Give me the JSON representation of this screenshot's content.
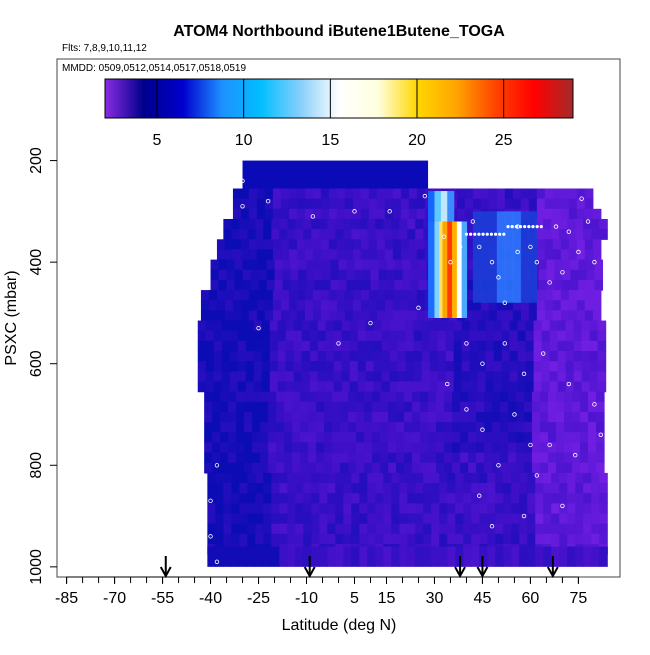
{
  "chart_data": {
    "type": "heatmap",
    "title": "ATOM4 Northbound iButene1Butene_TOGA",
    "subtitle_flights": "Flts: 7,8,9,10,11,12",
    "subtitle_dates": "MMDD: 0509,0512,0514,0517,0518,0519",
    "xlabel": "Latitude (deg N)",
    "ylabel": "PSXC (mbar)",
    "xlim": [
      -88,
      88
    ],
    "ylim": [
      1020,
      0
    ],
    "x_ticks": [
      -85,
      -70,
      -55,
      -40,
      -25,
      -10,
      5,
      15,
      30,
      45,
      60,
      75
    ],
    "x_tick_labels": [
      "-85",
      "-70",
      "-55",
      "-40",
      "-25",
      "-10",
      "5",
      "15",
      "30",
      "45",
      "60",
      "75"
    ],
    "x_minor_step": 5,
    "y_ticks": [
      200,
      400,
      600,
      800,
      1000
    ],
    "y_tick_labels": [
      "200",
      "400",
      "600",
      "800",
      "1000"
    ],
    "colorbar": {
      "range": [
        2,
        29
      ],
      "ticks": [
        5,
        10,
        15,
        20,
        25
      ],
      "tick_labels": [
        "5",
        "10",
        "15",
        "20",
        "25"
      ],
      "colors": [
        "#8a2be2",
        "#00008b",
        "#0000cd",
        "#1e90ff",
        "#00bfff",
        "#87cefa",
        "#ffffff",
        "#ffffe0",
        "#ffd700",
        "#ffa500",
        "#ff4500",
        "#ff0000",
        "#a52a2a"
      ]
    },
    "flight_markers_lat": [
      -54,
      -9,
      38,
      45,
      67
    ],
    "colors": {
      "low": "#7b22e8",
      "mid_low": "#3d10c8",
      "navy": "#0a0ab4",
      "high": "#ff2000"
    }
  }
}
